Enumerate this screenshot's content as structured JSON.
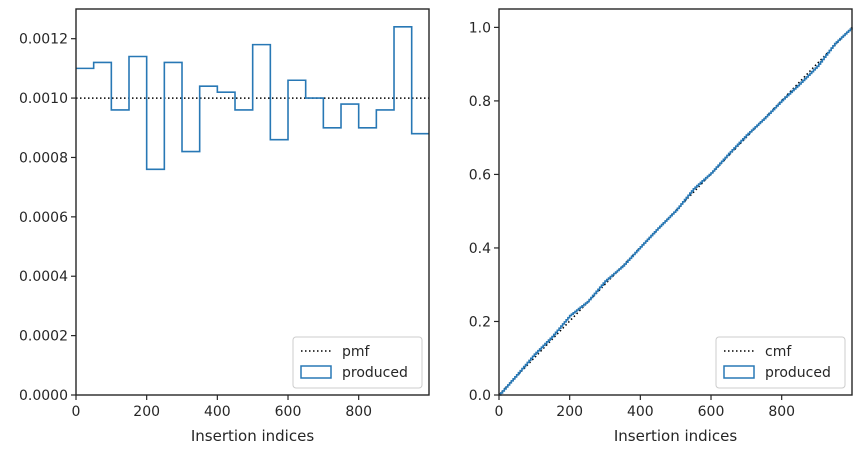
{
  "colors": {
    "produced": "#2878b5",
    "reference": "#000000",
    "frame": "#262626"
  },
  "chart_data": [
    {
      "type": "line",
      "panel": "left",
      "xlabel": "Insertion indices",
      "ylabel": "",
      "xlim": [
        0,
        999
      ],
      "ylim": [
        0,
        0.0013
      ],
      "xticks": [
        "0",
        "200",
        "400",
        "600",
        "800"
      ],
      "yticks": [
        "0.0000",
        "0.0002",
        "0.0004",
        "0.0006",
        "0.0008",
        "0.0010",
        "0.0012"
      ],
      "legend_position": "lower right",
      "grid": false,
      "series": [
        {
          "name": "pmf",
          "style": "dotted",
          "x": [
            0,
            999
          ],
          "y": [
            0.001,
            0.001
          ]
        },
        {
          "name": "produced",
          "style": "step",
          "bin_edges": [
            0,
            50,
            100,
            150,
            200,
            250,
            300,
            350,
            400,
            450,
            500,
            550,
            600,
            650,
            700,
            750,
            800,
            850,
            900,
            950,
            999
          ],
          "values": [
            0.0011,
            0.00112,
            0.00096,
            0.00114,
            0.00076,
            0.00112,
            0.00082,
            0.00104,
            0.00102,
            0.00096,
            0.00118,
            0.00086,
            0.00106,
            0.001,
            0.0009,
            0.00098,
            0.0009,
            0.00096,
            0.00124,
            0.00088
          ]
        }
      ]
    },
    {
      "type": "line",
      "panel": "right",
      "xlabel": "Insertion indices",
      "ylabel": "",
      "xlim": [
        0,
        999
      ],
      "ylim": [
        0,
        1.05
      ],
      "xticks": [
        "0",
        "200",
        "400",
        "600",
        "800"
      ],
      "yticks": [
        "0.0",
        "0.2",
        "0.4",
        "0.6",
        "0.8",
        "1.0"
      ],
      "legend_position": "lower right",
      "grid": false,
      "series": [
        {
          "name": "cmf",
          "style": "dotted",
          "x": [
            0,
            999
          ],
          "y": [
            0.001,
            1.0
          ]
        },
        {
          "name": "produced",
          "style": "step",
          "x": [
            0,
            50,
            100,
            150,
            200,
            250,
            300,
            350,
            400,
            450,
            500,
            550,
            600,
            650,
            700,
            750,
            800,
            850,
            900,
            950,
            999
          ],
          "y": [
            0.0,
            0.055,
            0.111,
            0.159,
            0.216,
            0.254,
            0.31,
            0.351,
            0.403,
            0.454,
            0.502,
            0.561,
            0.604,
            0.657,
            0.707,
            0.752,
            0.801,
            0.846,
            0.894,
            0.956,
            1.0
          ]
        }
      ]
    }
  ]
}
